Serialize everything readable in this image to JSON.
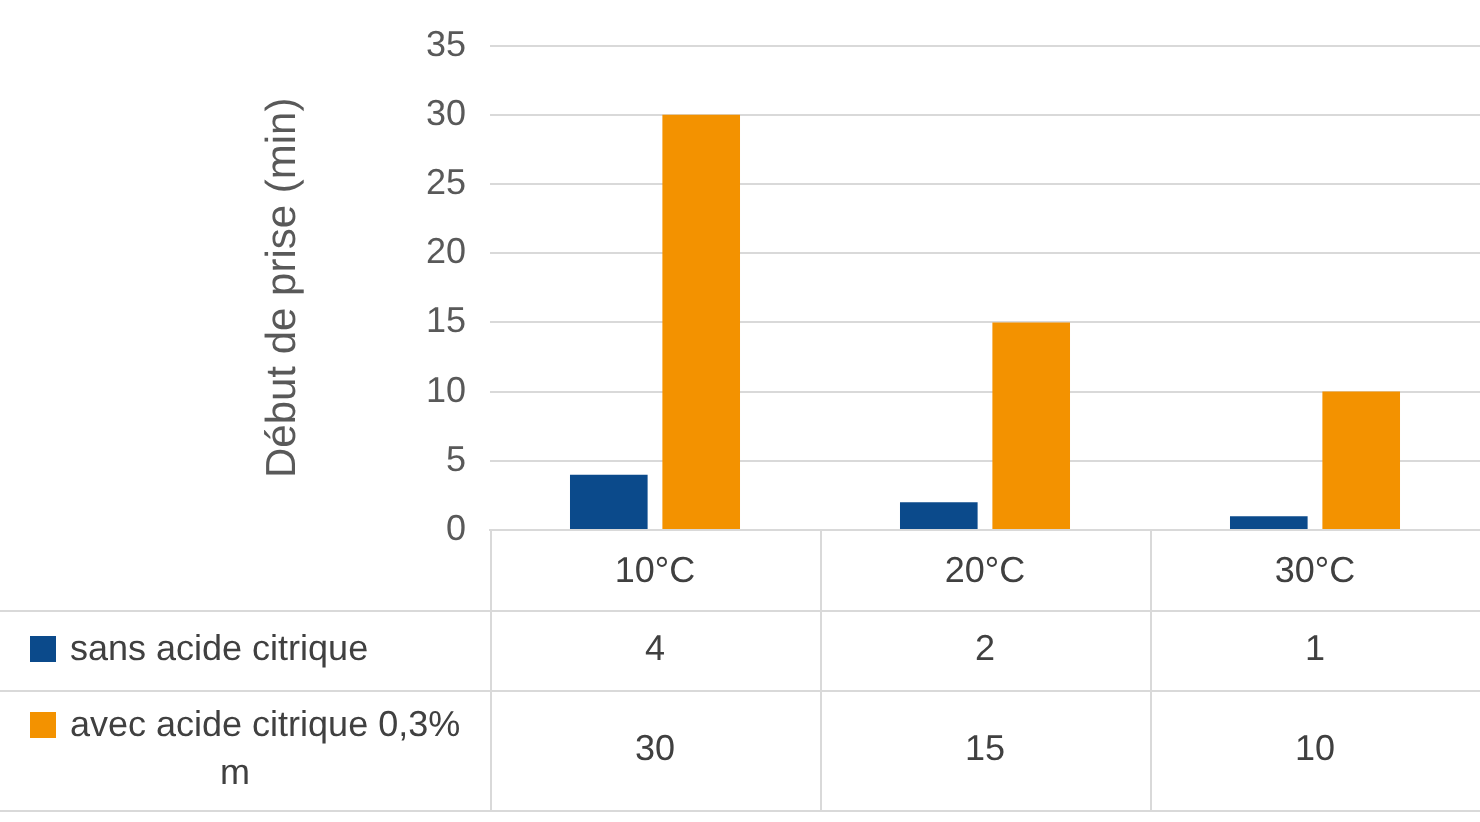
{
  "chart_data": {
    "type": "bar",
    "ylabel": "Début de prise (min)",
    "categories": [
      "10°C",
      "20°C",
      "30°C"
    ],
    "series": [
      {
        "name": "sans acide citrique",
        "color": "#0b4a8b",
        "values": [
          4,
          2,
          1
        ]
      },
      {
        "name": "avec acide citrique 0,3% m",
        "color": "#f39200",
        "values": [
          30,
          15,
          10
        ]
      }
    ],
    "ylim": [
      0,
      35
    ],
    "yticks": [
      0,
      5,
      10,
      15,
      20,
      25,
      30,
      35
    ],
    "grid": "y",
    "legend": "bottom",
    "data_labels": true
  }
}
